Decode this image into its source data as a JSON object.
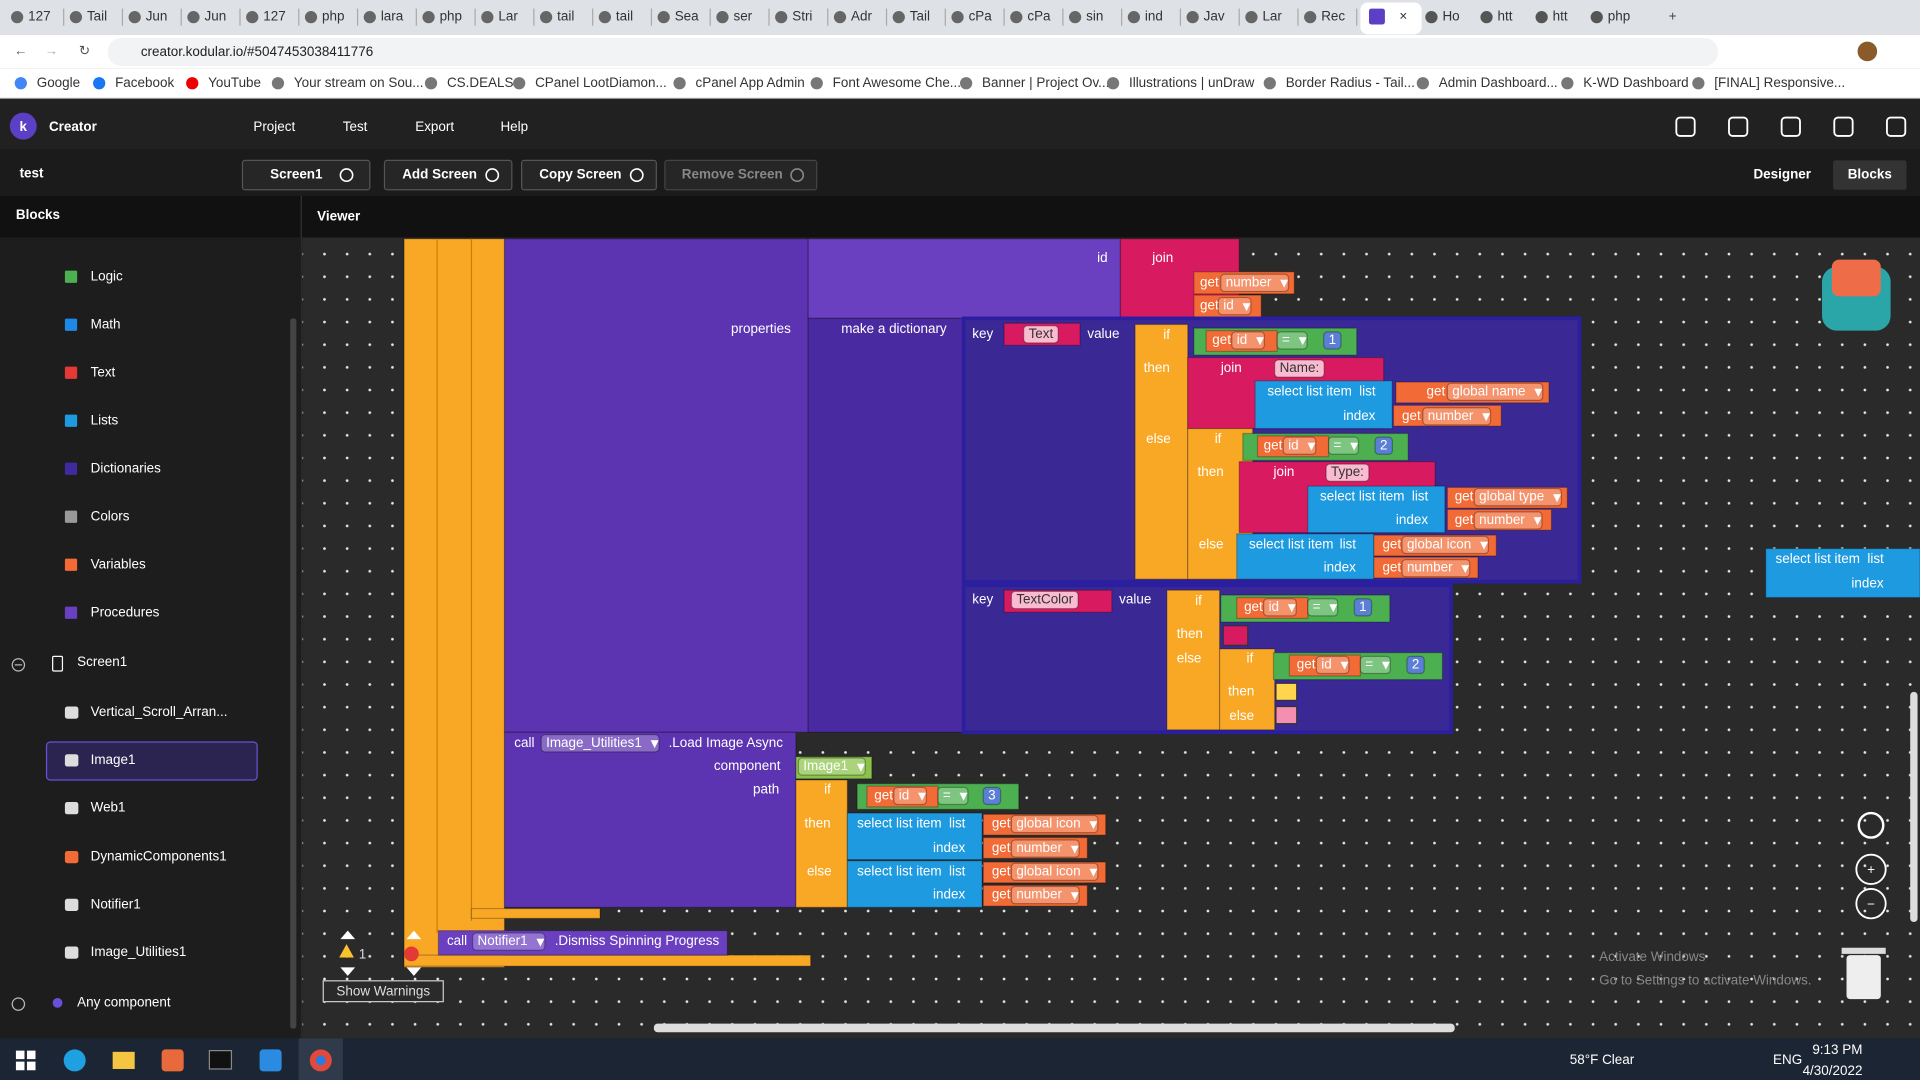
{
  "browser": {
    "tabs": [
      "127",
      "Tail",
      "Jun",
      "Jun",
      "127",
      "php",
      "lara",
      "php",
      "Lar",
      "tail",
      "tail",
      "Sea",
      "ser",
      "Stri",
      "Adr",
      "Tail",
      "cPa",
      "cPa",
      "sin",
      "ind",
      "Jav",
      "Lar",
      "Rec"
    ],
    "tabs_after": [
      "Ho",
      "htt",
      "htt",
      "php"
    ],
    "url": "creator.kodular.io/#5047453038411776",
    "bookmarks": [
      "Google",
      "Facebook",
      "YouTube",
      "Your stream on Sou...",
      "CS.DEALS",
      "CPanel LootDiamon...",
      "cPanel App Admin",
      "Font Awesome Che...",
      "Banner | Project Ov...",
      "Illustrations | unDraw",
      "Border Radius - Tail...",
      "Admin Dashboard...",
      "K-WD Dashboard",
      "[FINAL] Responsive..."
    ]
  },
  "app": {
    "brand": "Creator",
    "menu": [
      "Project",
      "Test",
      "Export",
      "Help"
    ],
    "project": "test",
    "screen": "Screen1",
    "buttons": [
      "Add Screen",
      "Copy Screen",
      "Remove Screen"
    ],
    "modes": [
      "Designer",
      "Blocks"
    ]
  },
  "sidebar": {
    "title": "Blocks",
    "builtins": [
      "Logic",
      "Math",
      "Text",
      "Lists",
      "Dictionaries",
      "Colors",
      "Variables",
      "Procedures"
    ],
    "screen": "Screen1",
    "components": [
      "Vertical_Scroll_Arran...",
      "Image1",
      "Web1",
      "DynamicComponents1",
      "Notifier1",
      "Image_Utilities1"
    ],
    "any": "Any component"
  },
  "viewer": {
    "title": "Viewer",
    "blocks": [
      "id",
      "join",
      "get",
      "number",
      "get",
      "id",
      "properties",
      "make a dictionary",
      "key",
      "Text",
      "value",
      "if",
      "get",
      "id",
      "=",
      "1",
      "then",
      "join",
      "Name:",
      "select list item",
      "list",
      "get",
      "global name",
      "index",
      "get",
      "number",
      "else",
      "if",
      "get",
      "id",
      "=",
      "2",
      "then",
      "join",
      "Type:",
      "select list item",
      "list",
      "get",
      "global type",
      "index",
      "get",
      "number",
      "else",
      "select list item",
      "list",
      "get",
      "global icon",
      "index",
      "get",
      "number",
      "key",
      "TextColor",
      "value",
      "if",
      "get",
      "id",
      "=",
      "1",
      "then",
      "else",
      "if",
      "get",
      "id",
      "=",
      "2",
      "then",
      "else",
      "call",
      "Image_Utilities1",
      ".Load Image Async",
      "component",
      "Image1",
      "path",
      "if",
      "get",
      "id",
      "=",
      "3",
      "then",
      "select list item",
      "list",
      "get",
      "global icon",
      "index",
      "get",
      "number",
      "else",
      "select list item",
      "list",
      "get",
      "global icon",
      "index",
      "get",
      "number",
      "call",
      "Notifier1",
      ".Dismiss Spinning Progress",
      "select list item",
      "list",
      "index"
    ],
    "warn_count": 1,
    "warnings": "Show Warnings",
    "watermark": [
      "Activate Windows",
      "Go to Settings to activate Windows."
    ]
  },
  "taskbar": {
    "weather": "58°F Clear",
    "lang": "ENG",
    "time": "9:13 PM",
    "date": "4/30/2022"
  }
}
